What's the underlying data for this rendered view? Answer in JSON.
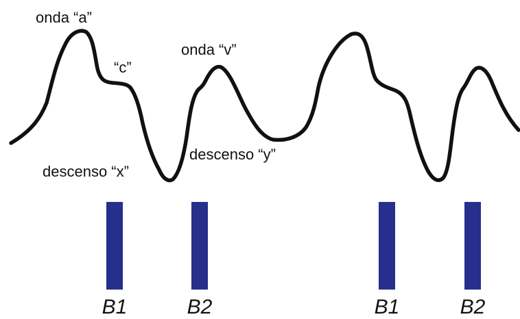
{
  "colors": {
    "wave": "#111111",
    "bar": "#262f8c",
    "background": "#ffffff"
  },
  "labels": {
    "wave_a": "onda “a”",
    "wave_c": "“c”",
    "wave_v": "onda “v”",
    "descent_x": "descenso “x”",
    "descent_y": "descenso “y”"
  },
  "markers": [
    {
      "label": "B1"
    },
    {
      "label": "B2"
    },
    {
      "label": "B1"
    },
    {
      "label": "B2"
    }
  ]
}
